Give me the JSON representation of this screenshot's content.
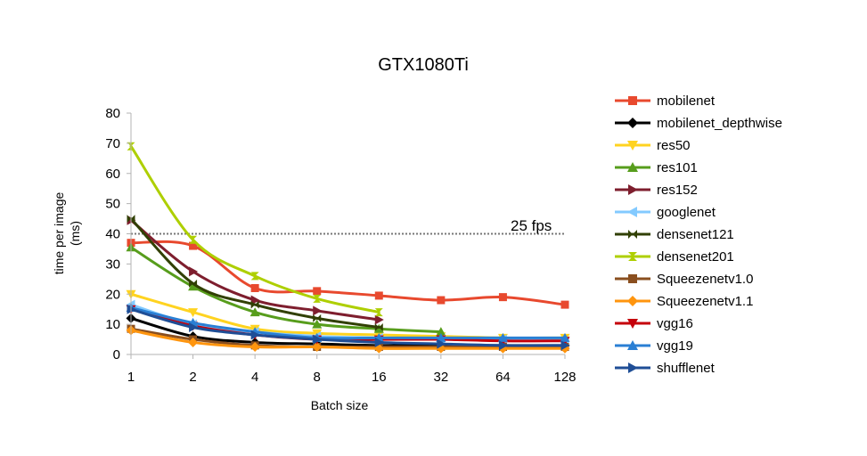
{
  "chart_data": {
    "type": "line",
    "title": "GTX1080Ti",
    "xlabel": "Batch size",
    "ylabel_line1": "time per image",
    "ylabel_line2": "(ms)",
    "categories": [
      "1",
      "2",
      "4",
      "8",
      "16",
      "32",
      "64",
      "128"
    ],
    "ylim": [
      0,
      80
    ],
    "yticks": [
      0,
      10,
      20,
      30,
      40,
      50,
      60,
      70,
      80
    ],
    "ytick_labels": [
      "0",
      "10",
      "20",
      "30",
      "40",
      "50",
      "60",
      "70",
      "80"
    ],
    "reference_line": {
      "value": 40,
      "label": "25 fps"
    },
    "legend_position": "right",
    "series": [
      {
        "name": "mobilenet",
        "color": "#e8492e",
        "marker": "square",
        "values": [
          37,
          36,
          22,
          21,
          19.5,
          18,
          19,
          16.5
        ]
      },
      {
        "name": "mobilenet_depthwise",
        "color": "#000000",
        "marker": "diamond",
        "values": [
          12,
          6,
          4,
          3.5,
          3,
          3,
          3,
          3
        ]
      },
      {
        "name": "res50",
        "color": "#ffd320",
        "marker": "triangle-down",
        "values": [
          20,
          14,
          8.5,
          7,
          6.5,
          6,
          5.5,
          5.5
        ]
      },
      {
        "name": "res101",
        "color": "#579d1c",
        "marker": "triangle-up",
        "values": [
          35.5,
          22.5,
          14,
          10,
          8.5,
          7.5,
          null,
          null
        ]
      },
      {
        "name": "res152",
        "color": "#7e1e2e",
        "marker": "triangle-right",
        "values": [
          44.5,
          27.5,
          18,
          14.5,
          11.5,
          null,
          null,
          null
        ]
      },
      {
        "name": "googlenet",
        "color": "#83caff",
        "marker": "triangle-left",
        "values": [
          16.5,
          10,
          7.5,
          6,
          5.5,
          5,
          5,
          4.5
        ]
      },
      {
        "name": "densenet121",
        "color": "#314004",
        "marker": "bowtie",
        "values": [
          45,
          23.5,
          16.5,
          12,
          9,
          null,
          null,
          null
        ]
      },
      {
        "name": "densenet201",
        "color": "#aecf00",
        "marker": "hourglass",
        "values": [
          69,
          38,
          26,
          18.5,
          14,
          null,
          null,
          null
        ]
      },
      {
        "name": "Squeezenetv1.0",
        "color": "#8a4f1f",
        "marker": "square",
        "values": [
          8.5,
          5,
          3,
          2.5,
          2.5,
          2.5,
          2.5,
          2.5
        ]
      },
      {
        "name": "Squeezenetv1.1",
        "color": "#ff950e",
        "marker": "diamond",
        "values": [
          8,
          4,
          2.5,
          2.5,
          2,
          2,
          2,
          2
        ]
      },
      {
        "name": "vgg16",
        "color": "#c5000b",
        "marker": "triangle-down",
        "values": [
          15,
          9.5,
          6.5,
          5,
          5,
          5,
          4.5,
          4.5
        ]
      },
      {
        "name": "vgg19",
        "color": "#2a7fd4",
        "marker": "triangle-up",
        "values": [
          15.5,
          10.5,
          7.5,
          5.5,
          5.5,
          5.5,
          5.5,
          5.5
        ]
      },
      {
        "name": "shufflenet",
        "color": "#1f4e96",
        "marker": "triangle-right",
        "values": [
          15,
          9,
          6.5,
          5,
          4,
          3.5,
          3,
          3
        ]
      }
    ]
  }
}
